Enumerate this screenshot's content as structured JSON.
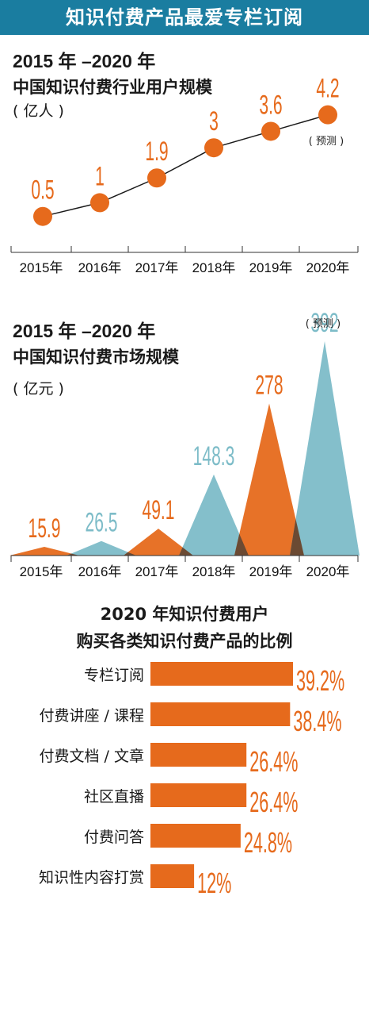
{
  "banner": {
    "title": "知识付费产品最爱专栏订阅"
  },
  "chart_data": [
    {
      "type": "line",
      "title": "2015 年 –2020 年",
      "subtitle": "中国知识付费行业用户规模",
      "unit": "( 亿人 )",
      "categories": [
        "2015年",
        "2016年",
        "2017年",
        "2018年",
        "2019年",
        "2020年"
      ],
      "values": [
        0.5,
        1,
        1.9,
        3,
        3.6,
        4.2
      ],
      "value_labels": [
        "0.5",
        "1",
        "1.9",
        "3",
        "3.6",
        "4.2"
      ],
      "annotations": [
        "( 预测 )"
      ],
      "ylim": [
        0,
        5
      ],
      "colors": {
        "point": "#e66a1c",
        "line": "#1a1a1a"
      }
    },
    {
      "type": "area",
      "title": "2015 年 –2020 年",
      "subtitle": "中国知识付费市场规模",
      "unit": "( 亿元 )",
      "categories": [
        "2015年",
        "2016年",
        "2017年",
        "2018年",
        "2019年",
        "2020年"
      ],
      "values": [
        15.9,
        26.5,
        49.1,
        148.3,
        278,
        392
      ],
      "value_labels": [
        "15.9",
        "26.5",
        "49.1",
        "148.3",
        "278",
        "392"
      ],
      "annotations": [
        "( 预测 )"
      ],
      "ylim": [
        0,
        420
      ],
      "colors": {
        "orange": "#e66a1c",
        "teal": "#7dbcc8",
        "overlap": "#6b4a33"
      }
    },
    {
      "type": "bar",
      "title": "2020 年知识付费用户",
      "subtitle": "购买各类知识付费产品的比例",
      "categories": [
        "专栏订阅",
        "付费讲座 / 课程",
        "付费文档 / 文章",
        "社区直播",
        "付费问答",
        "知识性内容打赏"
      ],
      "values": [
        39.2,
        38.4,
        26.4,
        26.4,
        24.8,
        12
      ],
      "value_labels": [
        "39.2%",
        "38.4%",
        "26.4%",
        "26.4%",
        "24.8%",
        "12%"
      ],
      "colors": {
        "bar": "#e66a1c"
      }
    }
  ]
}
